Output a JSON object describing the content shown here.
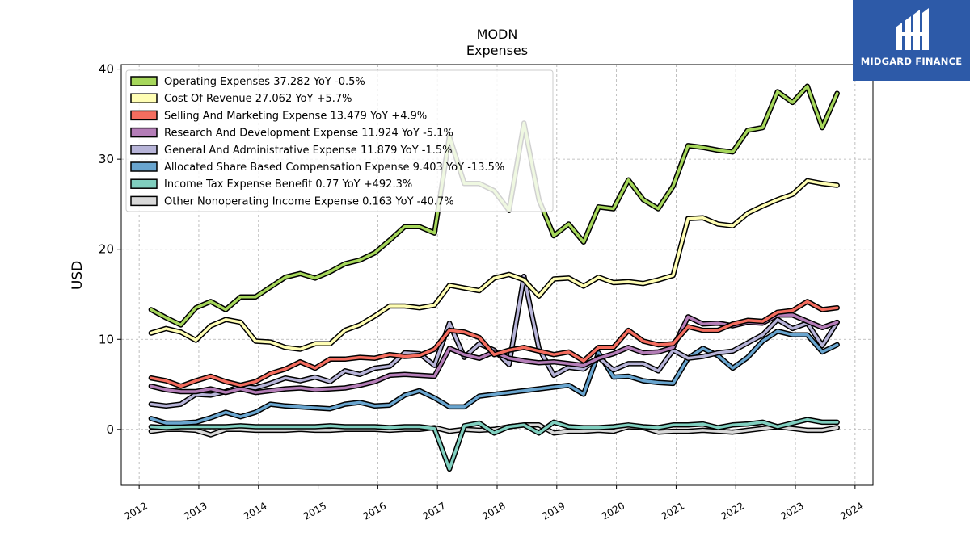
{
  "brand": {
    "name": "MIDGARD FINANCE",
    "logo_color": "#2d5aa8"
  },
  "chart_data": {
    "type": "line",
    "title": "MODN",
    "subtitle": "Expenses",
    "xlabel": "",
    "ylabel": "USD",
    "ylim": [
      -6.2,
      40.5
    ],
    "xlim": [
      2011.7,
      2024.3
    ],
    "yticks": [
      0,
      10,
      20,
      30,
      40
    ],
    "xticks": [
      "2012",
      "2013",
      "2014",
      "2015",
      "2016",
      "2017",
      "2018",
      "2019",
      "2020",
      "2021",
      "2022",
      "2023",
      "2024"
    ],
    "grid": true,
    "legend_position": "top-left",
    "x": [
      2012.2,
      2012.45,
      2012.7,
      2012.95,
      2013.2,
      2013.45,
      2013.7,
      2013.95,
      2014.2,
      2014.45,
      2014.7,
      2014.95,
      2015.2,
      2015.45,
      2015.7,
      2015.95,
      2016.2,
      2016.45,
      2016.7,
      2016.95,
      2017.2,
      2017.45,
      2017.7,
      2017.95,
      2018.2,
      2018.45,
      2018.7,
      2018.95,
      2019.2,
      2019.45,
      2019.7,
      2019.95,
      2020.2,
      2020.45,
      2020.7,
      2020.95,
      2021.2,
      2021.45,
      2021.7,
      2021.95,
      2022.2,
      2022.45,
      2022.7,
      2022.95,
      2023.2,
      2023.45,
      2023.7
    ],
    "series": [
      {
        "name": "Operating Expenses",
        "legend": "Operating Expenses  37.282 YoY -0.5%",
        "color": "#a6d75b",
        "values": [
          13.3,
          12.4,
          11.6,
          13.5,
          14.2,
          13.3,
          14.7,
          14.7,
          15.8,
          16.9,
          17.3,
          16.8,
          17.5,
          18.4,
          18.8,
          19.6,
          21.0,
          22.5,
          22.5,
          21.8,
          32.5,
          27.3,
          27.3,
          26.5,
          24.3,
          34.0,
          25.5,
          21.5,
          22.8,
          20.8,
          24.7,
          24.5,
          27.7,
          25.5,
          24.5,
          27.0,
          31.5,
          31.3,
          31.0,
          30.8,
          33.2,
          33.5,
          37.5,
          36.3,
          38.1,
          33.5,
          37.3
        ]
      },
      {
        "name": "Cost Of Revenue",
        "legend": "Cost Of Revenue  27.062 YoY +5.7%",
        "color": "#fffeb4",
        "values": [
          10.7,
          11.2,
          10.8,
          9.9,
          11.5,
          12.2,
          11.9,
          9.8,
          9.7,
          9.1,
          8.9,
          9.5,
          9.5,
          11.0,
          11.6,
          12.6,
          13.7,
          13.7,
          13.5,
          13.8,
          16.0,
          15.7,
          15.4,
          16.8,
          17.2,
          16.6,
          14.8,
          16.7,
          16.8,
          15.9,
          16.9,
          16.3,
          16.4,
          16.2,
          16.6,
          17.1,
          23.4,
          23.5,
          22.8,
          22.6,
          24.0,
          24.8,
          25.5,
          26.1,
          27.6,
          27.3,
          27.1
        ]
      },
      {
        "name": "Selling And Marketing Expense",
        "legend": "Selling And Marketing Expense  13.479 YoY +4.9%",
        "color": "#f46d5f",
        "values": [
          5.7,
          5.4,
          4.8,
          5.4,
          5.9,
          5.3,
          4.9,
          5.3,
          6.2,
          6.7,
          7.5,
          6.8,
          7.8,
          7.8,
          8.0,
          7.9,
          8.3,
          8.1,
          8.2,
          8.9,
          11.0,
          10.8,
          10.2,
          8.3,
          8.8,
          9.1,
          8.7,
          8.3,
          8.6,
          7.6,
          9.1,
          9.1,
          11.0,
          9.8,
          9.4,
          9.5,
          11.4,
          11.0,
          11.0,
          11.7,
          12.1,
          12.0,
          13.0,
          13.2,
          14.2,
          13.3,
          13.5
        ]
      },
      {
        "name": "Research And Development Expense",
        "legend": "Research And Development Expense  11.924 YoY -5.1%",
        "color": "#b47db7",
        "values": [
          4.8,
          4.4,
          4.2,
          4.2,
          4.5,
          4.1,
          4.5,
          4.1,
          4.3,
          4.5,
          4.6,
          4.4,
          4.5,
          4.6,
          4.9,
          5.3,
          6.0,
          6.1,
          6.0,
          5.9,
          9.0,
          8.3,
          7.9,
          8.6,
          7.9,
          7.6,
          7.4,
          7.5,
          7.3,
          7.1,
          7.9,
          8.4,
          9.1,
          8.5,
          8.6,
          9.1,
          12.5,
          11.7,
          11.8,
          11.5,
          11.9,
          11.8,
          12.7,
          12.7,
          12.0,
          11.3,
          11.9
        ]
      },
      {
        "name": "General And Administrative Expense",
        "legend": "General And Administrative Expense  11.879 YoY -1.5%",
        "color": "#b7b4d8",
        "values": [
          2.8,
          2.6,
          2.8,
          3.9,
          3.8,
          4.2,
          4.8,
          4.6,
          5.1,
          5.7,
          5.4,
          5.8,
          5.3,
          6.5,
          6.1,
          6.8,
          7.0,
          8.5,
          8.4,
          7.1,
          11.8,
          8.0,
          9.5,
          8.8,
          7.2,
          17.0,
          9.0,
          6.0,
          6.9,
          6.7,
          8.0,
          6.6,
          7.3,
          7.3,
          6.5,
          8.8,
          7.9,
          8.1,
          8.5,
          8.7,
          9.6,
          10.5,
          12.2,
          11.2,
          11.8,
          9.3,
          11.9
        ]
      },
      {
        "name": "Allocated Share Based Compensation Expense",
        "legend": "Allocated Share Based Compensation Expense  9.403 YoY -13.5%",
        "color": "#69a5cf",
        "values": [
          1.2,
          0.7,
          0.7,
          0.8,
          1.3,
          1.9,
          1.4,
          1.9,
          2.8,
          2.6,
          2.5,
          2.4,
          2.3,
          2.8,
          3.0,
          2.6,
          2.7,
          3.8,
          4.3,
          3.5,
          2.5,
          2.5,
          3.7,
          3.9,
          4.1,
          4.3,
          4.5,
          4.7,
          4.9,
          3.9,
          8.5,
          5.8,
          5.9,
          5.4,
          5.2,
          5.1,
          7.9,
          9.0,
          8.2,
          6.8,
          8.0,
          9.8,
          10.9,
          10.5,
          10.5,
          8.6,
          9.4
        ]
      },
      {
        "name": "Income Tax Expense Benefit",
        "legend": "Income Tax Expense Benefit  0.77 YoY +492.3%",
        "color": "#80cfbf",
        "values": [
          0.3,
          0.2,
          0.3,
          0.3,
          0.3,
          0.3,
          0.4,
          0.3,
          0.3,
          0.3,
          0.3,
          0.3,
          0.4,
          0.3,
          0.3,
          0.3,
          0.2,
          0.3,
          0.3,
          0.1,
          -4.4,
          0.4,
          0.7,
          -0.4,
          0.3,
          0.5,
          -0.4,
          0.8,
          0.3,
          0.2,
          0.2,
          0.3,
          0.5,
          0.3,
          0.2,
          0.5,
          0.5,
          0.6,
          0.2,
          0.5,
          0.6,
          0.8,
          0.3,
          0.7,
          1.1,
          0.8,
          0.8
        ]
      },
      {
        "name": "Other Nonoperating Income Expense",
        "legend": "Other Nonoperating Income Expense  0.163 YoY -40.7%",
        "color": "#d9d9d9",
        "values": [
          -0.2,
          0.0,
          0.0,
          -0.1,
          -0.6,
          0.0,
          0.0,
          -0.1,
          -0.1,
          -0.1,
          0.0,
          -0.1,
          -0.1,
          0.0,
          0.0,
          0.0,
          -0.1,
          0.0,
          0.0,
          0.2,
          -0.2,
          0.0,
          -0.1,
          0.0,
          0.3,
          0.5,
          0.5,
          -0.4,
          -0.2,
          -0.2,
          -0.1,
          -0.2,
          0.3,
          0.2,
          -0.3,
          -0.2,
          -0.2,
          -0.1,
          -0.2,
          -0.3,
          -0.1,
          0.1,
          0.3,
          0.1,
          -0.1,
          -0.1,
          0.2
        ]
      }
    ]
  }
}
